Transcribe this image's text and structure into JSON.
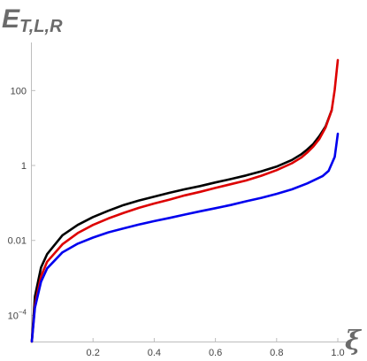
{
  "chart_data": {
    "type": "line",
    "ylabel": {
      "main": "E",
      "sub": "T,L,R"
    },
    "xlabel": "ξ",
    "xlim": [
      0,
      1.0
    ],
    "ylim": [
      2e-05,
      1000
    ],
    "yscale": "log",
    "grid": false,
    "x_ticks": [
      {
        "value": 0.2,
        "label": "0.2"
      },
      {
        "value": 0.4,
        "label": "0.4"
      },
      {
        "value": 0.6,
        "label": "0.6"
      },
      {
        "value": 0.8,
        "label": "0.8"
      },
      {
        "value": 1.0,
        "label": "1.0"
      }
    ],
    "y_ticks": [
      {
        "value": 0.0001,
        "label": "10",
        "exp": "−4"
      },
      {
        "value": 0.01,
        "label": "0.01"
      },
      {
        "value": 1,
        "label": "1"
      },
      {
        "value": 100,
        "label": "100"
      }
    ],
    "series": [
      {
        "color": "#000000",
        "x": [
          0.0,
          0.01,
          0.03,
          0.05,
          0.1,
          0.15,
          0.2,
          0.25,
          0.3,
          0.35,
          0.4,
          0.45,
          0.5,
          0.55,
          0.6,
          0.65,
          0.7,
          0.75,
          0.8,
          0.85,
          0.88,
          0.9,
          0.92,
          0.94,
          0.96,
          0.98
        ],
        "y": [
          2e-05,
          0.00032,
          0.0019,
          0.0043,
          0.0137,
          0.0259,
          0.042,
          0.062,
          0.088,
          0.116,
          0.148,
          0.187,
          0.232,
          0.282,
          0.352,
          0.433,
          0.543,
          0.699,
          0.935,
          1.4,
          1.98,
          2.66,
          3.75,
          6.13,
          11.1,
          30
        ]
      },
      {
        "color": "#dd0000",
        "x": [
          0.0,
          0.01,
          0.03,
          0.05,
          0.1,
          0.15,
          0.2,
          0.25,
          0.3,
          0.35,
          0.4,
          0.45,
          0.5,
          0.55,
          0.6,
          0.65,
          0.7,
          0.75,
          0.8,
          0.85,
          0.88,
          0.9,
          0.92,
          0.94,
          0.96,
          0.98,
          0.99,
          0.995,
          1.0
        ],
        "y": [
          2e-05,
          0.00019,
          0.0011,
          0.0027,
          0.0079,
          0.0157,
          0.0259,
          0.0385,
          0.0544,
          0.0742,
          0.0967,
          0.123,
          0.159,
          0.198,
          0.251,
          0.316,
          0.398,
          0.534,
          0.75,
          1.15,
          1.62,
          2.21,
          3.21,
          5.15,
          10.4,
          30,
          105,
          270,
          650
        ]
      },
      {
        "color": "#0000ee",
        "x": [
          0.0,
          0.01,
          0.03,
          0.05,
          0.1,
          0.15,
          0.2,
          0.25,
          0.3,
          0.35,
          0.4,
          0.45,
          0.5,
          0.55,
          0.6,
          0.65,
          0.7,
          0.75,
          0.8,
          0.85,
          0.9,
          0.95,
          0.97,
          0.99,
          0.995,
          1.0
        ],
        "y": [
          2e-05,
          0.00016,
          0.00079,
          0.0018,
          0.0048,
          0.0082,
          0.0119,
          0.0164,
          0.021,
          0.0265,
          0.0328,
          0.0398,
          0.049,
          0.06,
          0.0726,
          0.088,
          0.111,
          0.137,
          0.175,
          0.231,
          0.332,
          0.52,
          0.72,
          1.7,
          3.5,
          7.0
        ]
      }
    ]
  }
}
